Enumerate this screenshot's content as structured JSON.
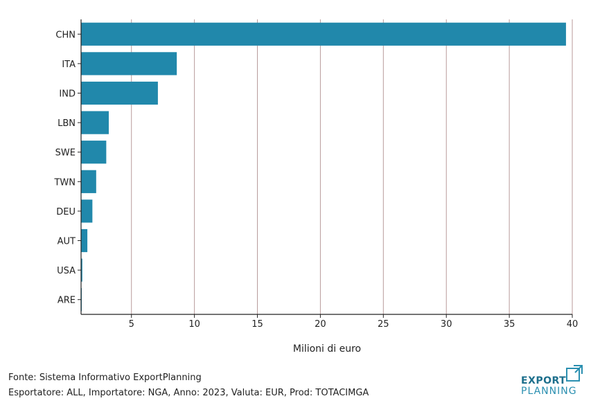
{
  "chart_data": {
    "type": "bar",
    "orientation": "horizontal",
    "categories": [
      "CHN",
      "ITA",
      "IND",
      "LBN",
      "SWE",
      "TWN",
      "DEU",
      "AUT",
      "USA",
      "ARE"
    ],
    "values": [
      39.5,
      8.6,
      7.1,
      3.2,
      3.0,
      2.2,
      1.9,
      1.5,
      1.1,
      0.95
    ],
    "xlabel": "Milioni di euro",
    "ylabel": "",
    "xlim": [
      1,
      40
    ],
    "xticks": [
      5,
      10,
      15,
      20,
      25,
      30,
      35,
      40
    ],
    "grid": "vertical",
    "bar_color": "#2188ab",
    "grid_color": "#b89a9a"
  },
  "footer": {
    "source": "Fonte: Sistema Informativo ExportPlanning",
    "params": "Esportatore: ALL, Importatore: NGA, Anno: 2023, Valuta: EUR, Prod: TOTACIMGA"
  },
  "logo": {
    "line1": "EXPORT",
    "line2": "PLANNING"
  }
}
